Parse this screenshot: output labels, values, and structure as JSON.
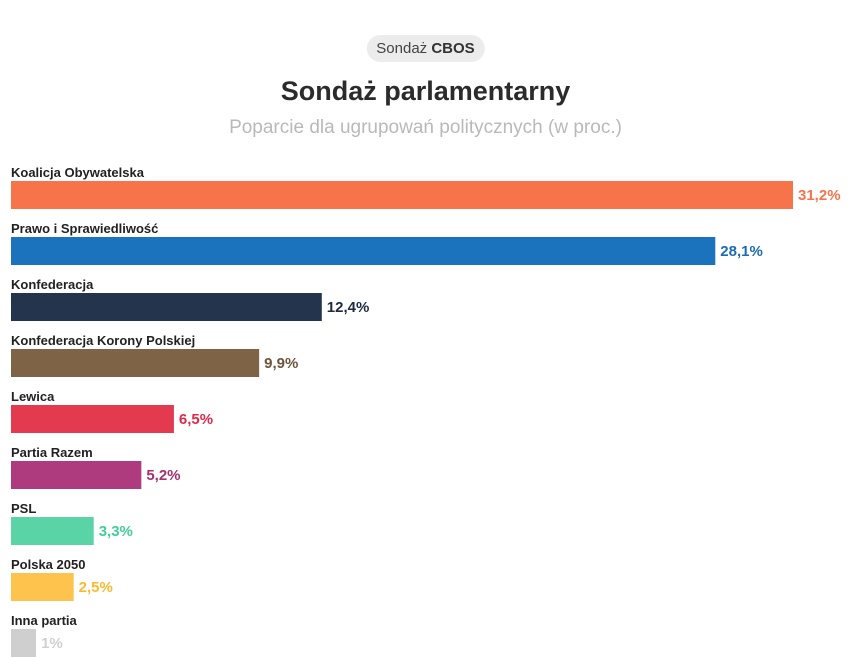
{
  "badge": {
    "prefix": "Sondaż",
    "source": "CBOS"
  },
  "chart_data": {
    "type": "bar",
    "orientation": "horizontal",
    "title": "Sondaż parlamentarny",
    "subtitle": "Poparcie dla ugrupowań politycznych (w proc.)",
    "xlabel": "",
    "ylabel": "",
    "xlim": [
      0,
      31.2
    ],
    "grid": false,
    "categories": [
      "Koalicja Obywatelska",
      "Prawo i Sprawiedliwość",
      "Konfederacja",
      "Konfederacja Korony Polskiej",
      "Lewica",
      "Partia Razem",
      "PSL",
      "Polska 2050",
      "Inna partia"
    ],
    "values": [
      31.2,
      28.1,
      12.4,
      9.9,
      6.5,
      5.2,
      3.3,
      2.5,
      1
    ],
    "value_labels": [
      "31,2%",
      "28,1%",
      "12,4%",
      "9,9%",
      "6,5%",
      "5,2%",
      "3,3%",
      "2,5%",
      "1%"
    ],
    "colors": [
      "#f7734a",
      "#1b73bd",
      "#24344d",
      "#7e6347",
      "#e33a50",
      "#ad3b7d",
      "#5ad4a6",
      "#fec34c",
      "#cfcfcf"
    ],
    "label_colors": [
      "#f7734a",
      "#1b6bb5",
      "#1d2b41",
      "#6c543a",
      "#e0294a",
      "#a5306f",
      "#3fcf98",
      "#fdb92e",
      "#d0d0d0"
    ]
  }
}
